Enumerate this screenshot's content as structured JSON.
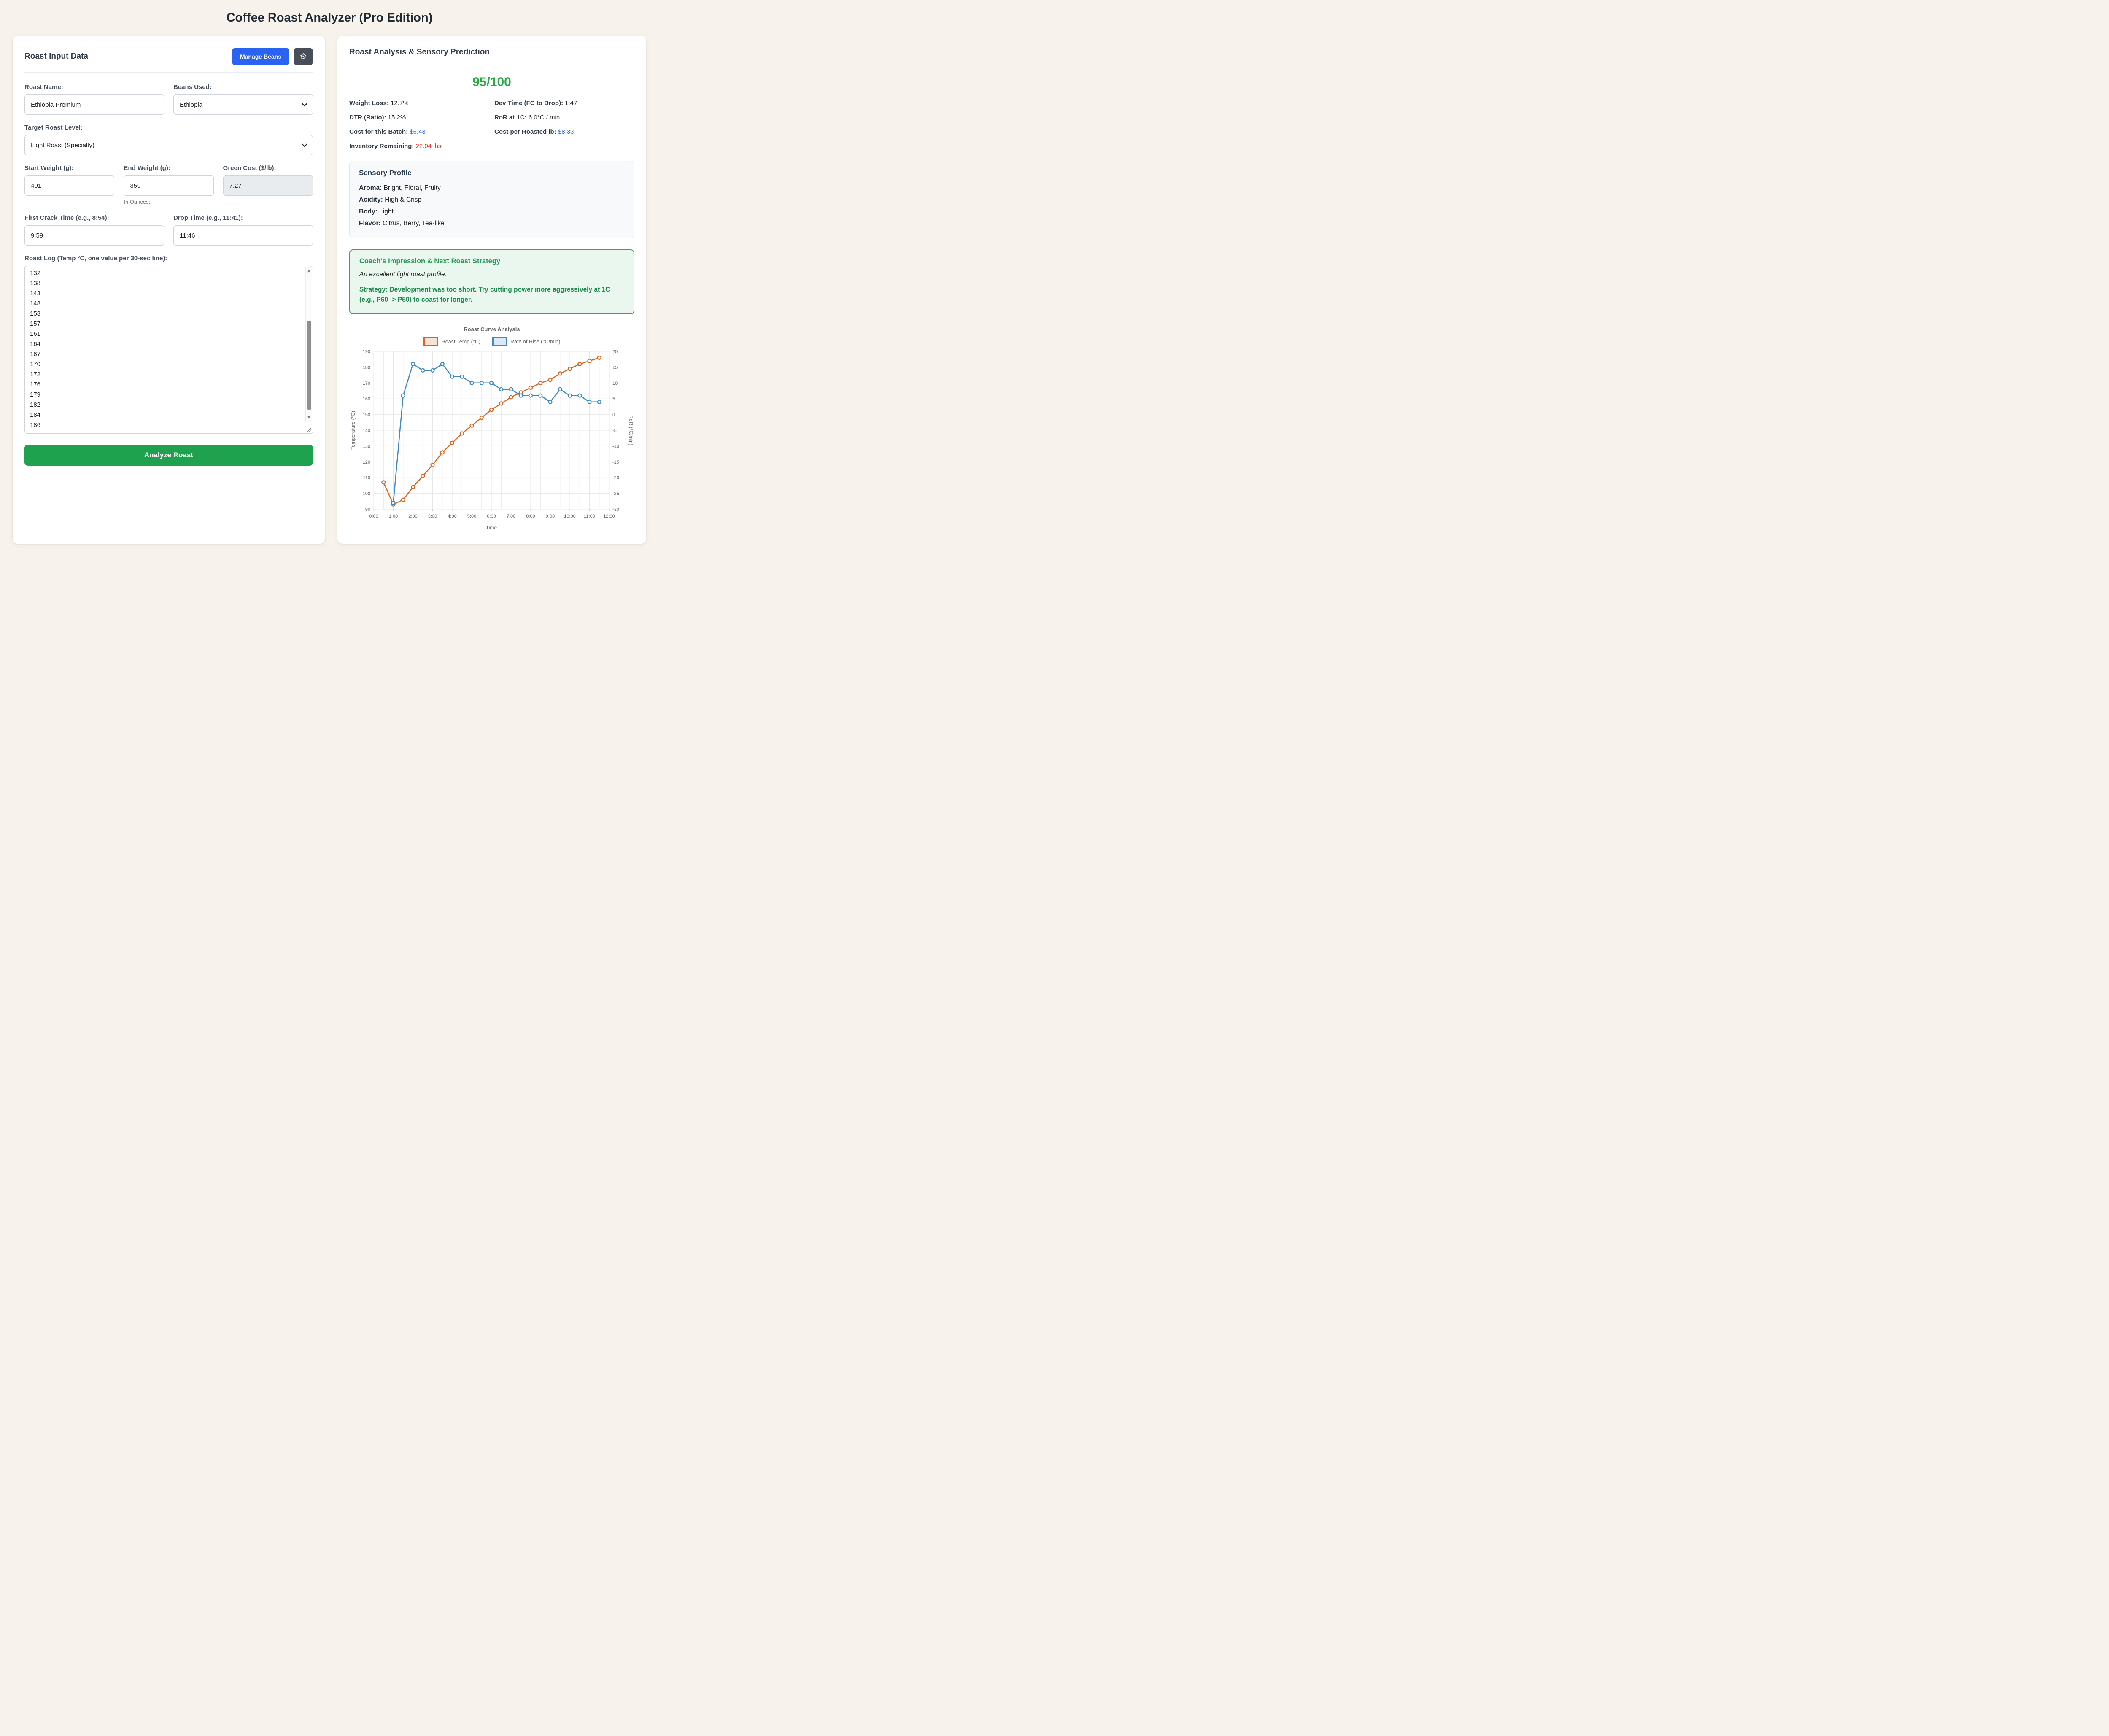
{
  "page": {
    "title": "Coffee Roast Analyzer (Pro Edition)"
  },
  "input_card": {
    "heading": "Roast Input Data",
    "manage_beans_button": "Manage Beans",
    "gear_icon": "⚙",
    "roast_name": {
      "label": "Roast Name:",
      "value": "Ethiopia Premium"
    },
    "beans_used": {
      "label": "Beans Used:",
      "value": "Ethiopia"
    },
    "target_roast_level": {
      "label": "Target Roast Level:",
      "value": "Light Roast (Specialty)"
    },
    "start_weight": {
      "label": "Start Weight (g):",
      "value": "401"
    },
    "end_weight": {
      "label": "End Weight (g):",
      "value": "350",
      "note": "In Ounces: -"
    },
    "green_cost": {
      "label": "Green Cost ($/lb):",
      "value": "7.27"
    },
    "first_crack_time": {
      "label": "First Crack Time (e.g., 8:54):",
      "value": "9:59"
    },
    "drop_time": {
      "label": "Drop Time (e.g., 11:41):",
      "value": "11:46"
    },
    "roast_log": {
      "label": "Roast Log (Temp °C, one value per 30-sec line):",
      "visible_text": "132\n138\n143\n148\n153\n157\n161\n164\n167\n170\n172\n176\n179\n182\n184\n186"
    },
    "analyze_button": "Analyze Roast"
  },
  "analysis_card": {
    "heading": "Roast Analysis & Sensory Prediction",
    "score": "95/100",
    "stats": [
      {
        "label": "Weight Loss:",
        "value": "12.7%",
        "style": "dark"
      },
      {
        "label": "Dev Time (FC to Drop):",
        "value": "1:47",
        "style": "dark"
      },
      {
        "label": "DTR (Ratio):",
        "value": "15.2%",
        "style": "dark"
      },
      {
        "label": "RoR at 1C:",
        "value": "6.0°C / min",
        "style": "dark"
      },
      {
        "label": "Cost for this Batch:",
        "value": "$6.43",
        "style": "blue"
      },
      {
        "label": "Cost per Roasted lb:",
        "value": "$8.33",
        "style": "blue"
      },
      {
        "label": "Inventory Remaining:",
        "value": "22.04 lbs",
        "style": "red"
      }
    ],
    "sensory": {
      "heading": "Sensory Profile",
      "rows": [
        {
          "label": "Aroma:",
          "value": "Bright, Floral, Fruity"
        },
        {
          "label": "Acidity:",
          "value": "High & Crisp"
        },
        {
          "label": "Body:",
          "value": "Light"
        },
        {
          "label": "Flavor:",
          "value": "Citrus, Berry, Tea-like"
        }
      ]
    },
    "coach": {
      "heading": "Coach's Impression & Next Roast Strategy",
      "impression": "An excellent light roast profile.",
      "strategy": "Strategy: Development was too short. Try cutting power more aggressively at 1C (e.g., P60 -> P50) to coast for longer."
    }
  },
  "chart_data": {
    "type": "line",
    "title": "Roast Curve Analysis",
    "xlabel": "Time",
    "x_tick_labels": [
      "0:00",
      "1:00",
      "2:00",
      "3:00",
      "4:00",
      "5:00",
      "6:00",
      "7:00",
      "8:00",
      "9:00",
      "10:00",
      "11:00",
      "12:00"
    ],
    "x_hours_range": [
      0,
      12
    ],
    "x_gridline_step_min": 0.5,
    "axes": {
      "left": {
        "label": "Temperature (°C)",
        "min": 90,
        "max": 190,
        "step": 10
      },
      "right": {
        "label": "RoR (°C/min)",
        "min": -30,
        "max": 20,
        "step": 5
      }
    },
    "legend": [
      {
        "label": "Roast Temp (°C)",
        "color": "#d9641f",
        "fill": "#f8e3d2"
      },
      {
        "label": "Rate of Rise (°C/min)",
        "color": "#3e8bc4",
        "fill": "#d9eaf6"
      }
    ],
    "grid": true,
    "legend_position": "top",
    "series": [
      {
        "name": "Roast Temp (°C)",
        "axis": "left",
        "color": "#d9641f",
        "start_min": 0.5,
        "step_min": 0.5,
        "values": [
          107,
          93,
          96,
          104,
          111,
          118,
          126,
          132,
          138,
          143,
          148,
          153,
          157,
          161,
          164,
          167,
          170,
          172,
          176,
          179,
          182,
          184,
          186
        ]
      },
      {
        "name": "Rate of Rise (°C/min)",
        "axis": "right",
        "color": "#3e8bc4",
        "start_min": 1.0,
        "step_min": 0.5,
        "values": [
          -28,
          6,
          16,
          14,
          14,
          16,
          12,
          12,
          10,
          10,
          10,
          8,
          8,
          6,
          6,
          6,
          4,
          8,
          6,
          6,
          4,
          4
        ]
      }
    ]
  }
}
